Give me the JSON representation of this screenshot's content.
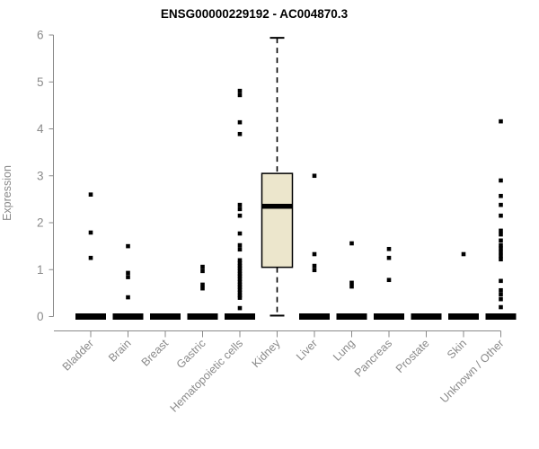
{
  "title": "ENSG00000229192 - AC004870.3",
  "colors": {
    "box_fill": "#ece6cc",
    "data_black": "#000000",
    "axis_gray": "#8a8a8a",
    "background": "#ffffff"
  },
  "chart_data": {
    "type": "boxplot",
    "title": "ENSG00000229192 - AC004870.3",
    "xlabel": "",
    "ylabel": "Expression",
    "ylim": [
      0,
      6
    ],
    "yticks": [
      0,
      1,
      2,
      3,
      4,
      5,
      6
    ],
    "grid": false,
    "legend": null,
    "categories": [
      "Bladder",
      "Brain",
      "Breast",
      "Gastric",
      "Hematopoietic cells",
      "Kidney",
      "Liver",
      "Lung",
      "Pancreas",
      "Prostate",
      "Skin",
      "Unknown / Other"
    ],
    "series": [
      {
        "name": "Bladder",
        "box": {
          "q1": 0,
          "median": 0,
          "q3": 0,
          "whisker_low": 0,
          "whisker_high": 0
        },
        "outliers": [
          2.6,
          1.79,
          1.25
        ]
      },
      {
        "name": "Brain",
        "box": {
          "q1": 0,
          "median": 0,
          "q3": 0,
          "whisker_low": 0,
          "whisker_high": 0
        },
        "outliers": [
          1.5,
          0.93,
          0.84,
          0.41
        ]
      },
      {
        "name": "Breast",
        "box": {
          "q1": 0,
          "median": 0,
          "q3": 0,
          "whisker_low": 0,
          "whisker_high": 0
        },
        "outliers": []
      },
      {
        "name": "Gastric",
        "box": {
          "q1": 0,
          "median": 0,
          "q3": 0,
          "whisker_low": 0,
          "whisker_high": 0
        },
        "outliers": [
          1.06,
          0.97,
          0.68,
          0.6
        ]
      },
      {
        "name": "Hematopoietic cells",
        "box": {
          "q1": 0,
          "median": 0,
          "q3": 0,
          "whisker_low": 0,
          "whisker_high": 0
        },
        "outliers": [
          4.81,
          4.72,
          4.14,
          3.89,
          2.38,
          2.29,
          2.15,
          1.77,
          1.52,
          1.43,
          1.2,
          1.14,
          1.08,
          1.03,
          0.97,
          0.91,
          0.86,
          0.8,
          0.74,
          0.68,
          0.63,
          0.57,
          0.51,
          0.45,
          0.4,
          0.18
        ]
      },
      {
        "name": "Kidney",
        "box": {
          "q1": 1.05,
          "median": 2.35,
          "q3": 3.05,
          "whisker_low": 0.02,
          "whisker_high": 5.94
        },
        "outliers": []
      },
      {
        "name": "Liver",
        "box": {
          "q1": 0,
          "median": 0,
          "q3": 0,
          "whisker_low": 0,
          "whisker_high": 0
        },
        "outliers": [
          3.0,
          1.33,
          1.08,
          0.99
        ]
      },
      {
        "name": "Lung",
        "box": {
          "q1": 0,
          "median": 0,
          "q3": 0,
          "whisker_low": 0,
          "whisker_high": 0
        },
        "outliers": [
          1.56,
          0.72,
          0.64
        ]
      },
      {
        "name": "Pancreas",
        "box": {
          "q1": 0,
          "median": 0,
          "q3": 0,
          "whisker_low": 0,
          "whisker_high": 0
        },
        "outliers": [
          1.44,
          1.25,
          0.78
        ]
      },
      {
        "name": "Prostate",
        "box": {
          "q1": 0,
          "median": 0,
          "q3": 0,
          "whisker_low": 0,
          "whisker_high": 0
        },
        "outliers": []
      },
      {
        "name": "Skin",
        "box": {
          "q1": 0,
          "median": 0,
          "q3": 0,
          "whisker_low": 0,
          "whisker_high": 0
        },
        "outliers": [
          1.33
        ]
      },
      {
        "name": "Unknown / Other",
        "box": {
          "q1": 0,
          "median": 0,
          "q3": 0,
          "whisker_low": 0,
          "whisker_high": 0
        },
        "outliers": [
          4.16,
          2.9,
          2.57,
          2.38,
          2.15,
          1.83,
          1.75,
          1.62,
          1.52,
          1.45,
          1.37,
          1.29,
          1.22,
          0.76,
          0.56,
          0.47,
          0.37,
          0.2
        ]
      }
    ]
  }
}
